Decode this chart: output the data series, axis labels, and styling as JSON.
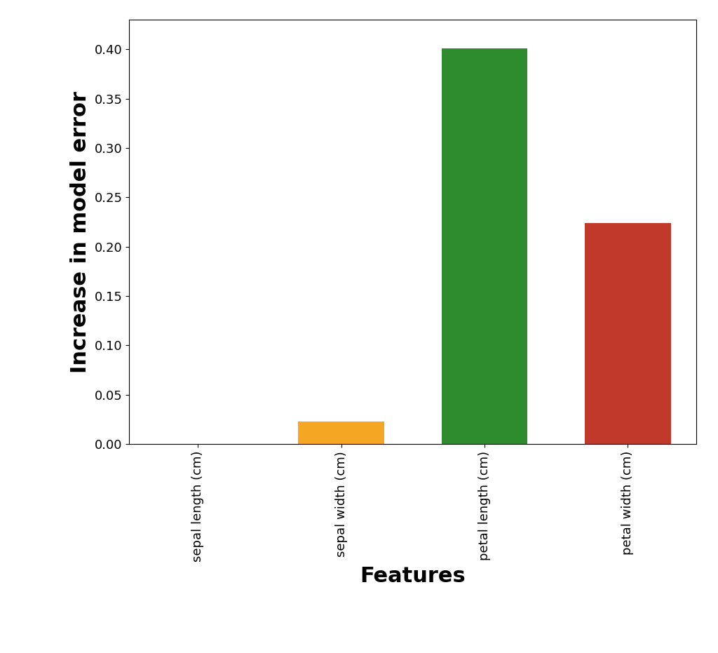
{
  "categories": [
    "sepal length (cm)",
    "sepal width (cm)",
    "petal length (cm)",
    "petal width (cm)"
  ],
  "values": [
    0.0,
    0.023,
    0.401,
    0.224
  ],
  "bar_colors": [
    "#4c9ed9",
    "#f5a623",
    "#2e8b2e",
    "#c0392b"
  ],
  "xlabel": "Features",
  "ylabel": "Increase in model error",
  "xlabel_fontsize": 22,
  "ylabel_fontsize": 22,
  "tick_fontsize": 13,
  "ytick_fontsize": 13,
  "ylim": [
    0,
    0.43
  ],
  "background_color": "#ffffff",
  "plot_bg_color": "#ffffff"
}
